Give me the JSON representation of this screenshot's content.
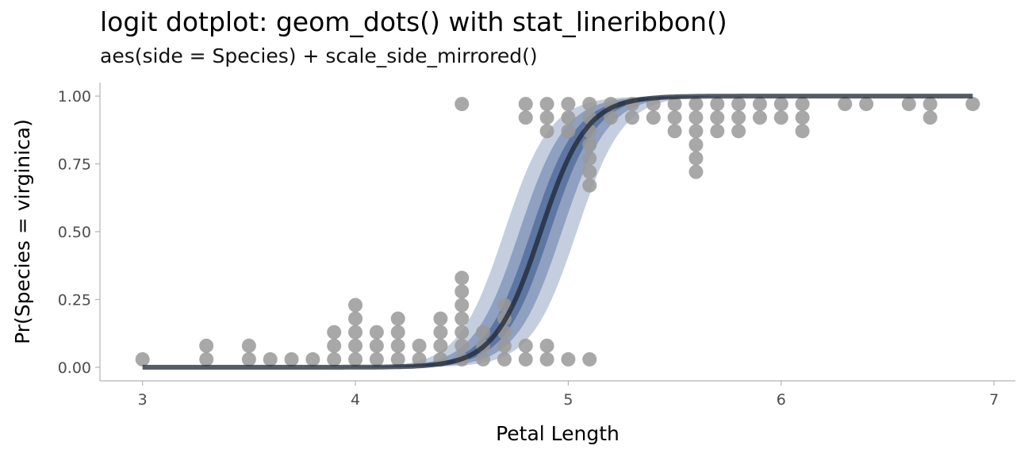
{
  "title": "logit dotplot: geom_dots() with stat_lineribbon()",
  "subtitle": "aes(side = Species) + scale_side_mirrored()",
  "chart_data": {
    "type": "scatter",
    "xlabel": "Petal Length",
    "ylabel": "Pr(Species = virginica)",
    "xlim": [
      2.8,
      7.1
    ],
    "ylim": [
      -0.05,
      1.05
    ],
    "x_ticks": [
      "3",
      "4",
      "5",
      "6",
      "7"
    ],
    "y_ticks": [
      "0.00",
      "0.25",
      "0.50",
      "0.75",
      "1.00"
    ],
    "grid": false,
    "legend": "none",
    "dot_color": "#999999",
    "line_color": "#1e2633",
    "ribbon_colors": [
      "#c0cadb",
      "#8a9cbe",
      "#5a72a0"
    ],
    "dots_versicolor": [
      {
        "x": 3.0,
        "count": 1
      },
      {
        "x": 3.3,
        "count": 2
      },
      {
        "x": 3.5,
        "count": 2
      },
      {
        "x": 3.6,
        "count": 1
      },
      {
        "x": 3.7,
        "count": 1
      },
      {
        "x": 3.8,
        "count": 1
      },
      {
        "x": 3.9,
        "count": 3
      },
      {
        "x": 4.0,
        "count": 5
      },
      {
        "x": 4.1,
        "count": 3
      },
      {
        "x": 4.2,
        "count": 4
      },
      {
        "x": 4.3,
        "count": 2
      },
      {
        "x": 4.4,
        "count": 4
      },
      {
        "x": 4.5,
        "count": 7
      },
      {
        "x": 4.6,
        "count": 3
      },
      {
        "x": 4.7,
        "count": 5
      },
      {
        "x": 4.8,
        "count": 2
      },
      {
        "x": 4.9,
        "count": 2
      },
      {
        "x": 5.0,
        "count": 1
      },
      {
        "x": 5.1,
        "count": 1
      }
    ],
    "dots_virginica": [
      {
        "x": 4.5,
        "count": 1
      },
      {
        "x": 4.8,
        "count": 2
      },
      {
        "x": 4.9,
        "count": 3
      },
      {
        "x": 5.0,
        "count": 3
      },
      {
        "x": 5.1,
        "count": 7
      },
      {
        "x": 5.2,
        "count": 2
      },
      {
        "x": 5.3,
        "count": 2
      },
      {
        "x": 5.4,
        "count": 2
      },
      {
        "x": 5.5,
        "count": 3
      },
      {
        "x": 5.6,
        "count": 6
      },
      {
        "x": 5.7,
        "count": 3
      },
      {
        "x": 5.8,
        "count": 3
      },
      {
        "x": 5.9,
        "count": 2
      },
      {
        "x": 6.0,
        "count": 2
      },
      {
        "x": 6.1,
        "count": 3
      },
      {
        "x": 6.3,
        "count": 1
      },
      {
        "x": 6.4,
        "count": 1
      },
      {
        "x": 6.6,
        "count": 1
      },
      {
        "x": 6.7,
        "count": 2
      },
      {
        "x": 6.9,
        "count": 1
      }
    ],
    "curve": {
      "x_range": [
        3.0,
        6.9
      ],
      "midpoint": 4.87,
      "slope": 9.3
    },
    "ribbons": [
      {
        "level": 0.95,
        "band_x": 0.17
      },
      {
        "level": 0.8,
        "band_x": 0.1
      },
      {
        "level": 0.5,
        "band_x": 0.045
      }
    ]
  }
}
